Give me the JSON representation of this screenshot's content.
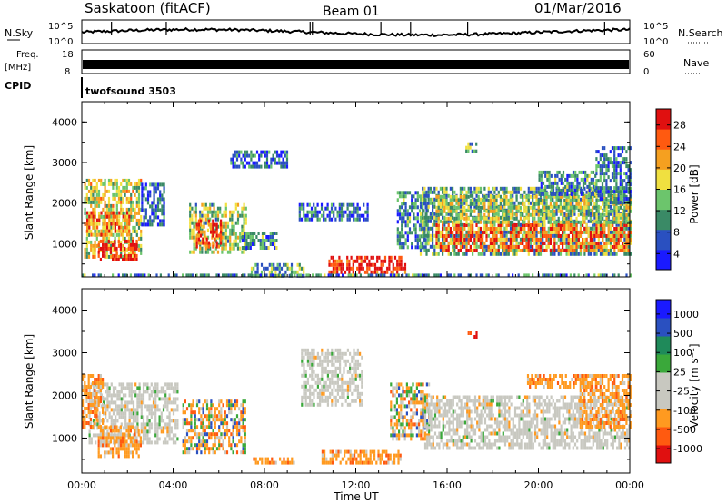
{
  "header": {
    "station": "Saskatoon (fitACF)",
    "beam": "Beam 01",
    "date": "01/Mar/2016"
  },
  "strip_labels": {
    "nsky": "N.Sky",
    "nsky_top": "10^5",
    "nsky_bottom": "10^0",
    "nsearch": "N.Search",
    "nsearch_top": "10^5",
    "nsearch_bottom": "10^0",
    "freq_line1": "Freq.",
    "freq_line2": "[MHz]",
    "freq_top": "18",
    "freq_bottom": "8",
    "nave": "Nave",
    "nave_top": "60",
    "nave_bottom": "0",
    "cpid": "CPID",
    "cpid_value": "twofsound 3503"
  },
  "colors": {
    "power": [
      "#1a1aff",
      "#2a50c0",
      "#3a8a66",
      "#6cc56c",
      "#f0e040",
      "#f5a020",
      "#ff5a10",
      "#e01010"
    ],
    "velocity": [
      "#e01010",
      "#ff5a10",
      "#ff9a20",
      "#c8c8c0",
      "#c8c8c0",
      "#3aa83a",
      "#1f8a5a",
      "#2a50c0",
      "#1a1aff"
    ],
    "gray_scatter": "#c8c8c0"
  },
  "chart_data": [
    {
      "type": "heatmap",
      "name": "power",
      "ylabel": "Slant Range [km]",
      "yticks": [
        "4000",
        "3000",
        "2000",
        "1000"
      ],
      "ylim": [
        180,
        4500
      ],
      "xlim_hours": [
        0,
        24
      ],
      "colorbar": {
        "label": "Power [dB]",
        "ticks": [
          "28",
          "24",
          "20",
          "16",
          "12",
          "8",
          "4"
        ],
        "range": [
          0,
          30
        ]
      },
      "regions": [
        {
          "t": [
            0.1,
            2.6
          ],
          "r": [
            700,
            2600
          ],
          "level": 0.55
        },
        {
          "t": [
            0.7,
            2.4
          ],
          "r": [
            600,
            1100
          ],
          "level": 0.95
        },
        {
          "t": [
            0.2,
            2.1
          ],
          "r": [
            1200,
            1800
          ],
          "level": 0.75
        },
        {
          "t": [
            2.6,
            3.6
          ],
          "r": [
            1500,
            2500
          ],
          "level": 0.2
        },
        {
          "t": [
            4.7,
            7.2
          ],
          "r": [
            800,
            2000
          ],
          "level": 0.45
        },
        {
          "t": [
            5.0,
            6.1
          ],
          "r": [
            900,
            1600
          ],
          "level": 0.85
        },
        {
          "t": [
            7.0,
            8.5
          ],
          "r": [
            900,
            1300
          ],
          "level": 0.3
        },
        {
          "t": [
            7.4,
            9.7
          ],
          "r": [
            250,
            520
          ],
          "level": 0.35
        },
        {
          "t": [
            10.8,
            14.2
          ],
          "r": [
            300,
            700
          ],
          "level": 0.95
        },
        {
          "t": [
            9.5,
            12.5
          ],
          "r": [
            1600,
            2000
          ],
          "level": 0.2
        },
        {
          "t": [
            13.8,
            15.2
          ],
          "r": [
            900,
            2300
          ],
          "level": 0.3
        },
        {
          "t": [
            14.8,
            24.0
          ],
          "r": [
            700,
            2400
          ],
          "level": 0.35
        },
        {
          "t": [
            15.5,
            24.0
          ],
          "r": [
            850,
            1500
          ],
          "level": 0.8
        },
        {
          "t": [
            15.5,
            24.0
          ],
          "r": [
            1500,
            2200
          ],
          "level": 0.5
        },
        {
          "t": [
            20.0,
            22.5
          ],
          "r": [
            2200,
            2800
          ],
          "level": 0.3
        },
        {
          "t": [
            22.5,
            24.0
          ],
          "r": [
            2000,
            3400
          ],
          "level": 0.25
        },
        {
          "t": [
            16.8,
            17.3
          ],
          "r": [
            3300,
            3500
          ],
          "level": 0.35
        },
        {
          "t": [
            6.5,
            9.0
          ],
          "r": [
            2900,
            3300
          ],
          "level": 0.2
        },
        {
          "t": [
            0.0,
            24.0
          ],
          "r": [
            180,
            260
          ],
          "level": 0.3
        }
      ]
    },
    {
      "type": "heatmap",
      "name": "velocity",
      "ylabel": "Slant Range [km]",
      "yticks": [
        "4000",
        "3000",
        "2000",
        "1000"
      ],
      "ylim": [
        180,
        4500
      ],
      "xlim_hours": [
        0,
        24
      ],
      "xticks": [
        "00:00",
        "04:00",
        "08:00",
        "12:00",
        "16:00",
        "20:00",
        "00:00"
      ],
      "xlabel": "Time UT",
      "colorbar": {
        "label": "Velocity [m s⁻¹]",
        "ticks": [
          "1000",
          "500",
          "100",
          "25",
          "-25",
          "-100",
          "-500",
          "-1000"
        ],
        "range": [
          -1000,
          1000
        ]
      },
      "regions": [
        {
          "t": [
            0.3,
            4.2
          ],
          "r": [
            900,
            2300
          ],
          "kind": "gray"
        },
        {
          "t": [
            0.0,
            0.9
          ],
          "r": [
            1300,
            2500
          ],
          "kind": "orange"
        },
        {
          "t": [
            0.7,
            2.6
          ],
          "r": [
            600,
            1300
          ],
          "kind": "orange"
        },
        {
          "t": [
            4.4,
            7.2
          ],
          "r": [
            700,
            1900
          ],
          "kind": "mixed"
        },
        {
          "t": [
            7.5,
            9.3
          ],
          "r": [
            400,
            550
          ],
          "kind": "orange"
        },
        {
          "t": [
            9.6,
            12.3
          ],
          "r": [
            1800,
            3100
          ],
          "kind": "gray"
        },
        {
          "t": [
            10.5,
            14.0
          ],
          "r": [
            380,
            720
          ],
          "kind": "orange"
        },
        {
          "t": [
            13.5,
            15.2
          ],
          "r": [
            1000,
            2300
          ],
          "kind": "mixed"
        },
        {
          "t": [
            15.0,
            24.0
          ],
          "r": [
            800,
            2000
          ],
          "kind": "gray"
        },
        {
          "t": [
            21.8,
            24.0
          ],
          "r": [
            1300,
            2500
          ],
          "kind": "orange"
        },
        {
          "t": [
            16.9,
            17.3
          ],
          "r": [
            3350,
            3500
          ],
          "kind": "red"
        },
        {
          "t": [
            19.5,
            22.5
          ],
          "r": [
            2200,
            2500
          ],
          "kind": "orange"
        }
      ]
    }
  ]
}
